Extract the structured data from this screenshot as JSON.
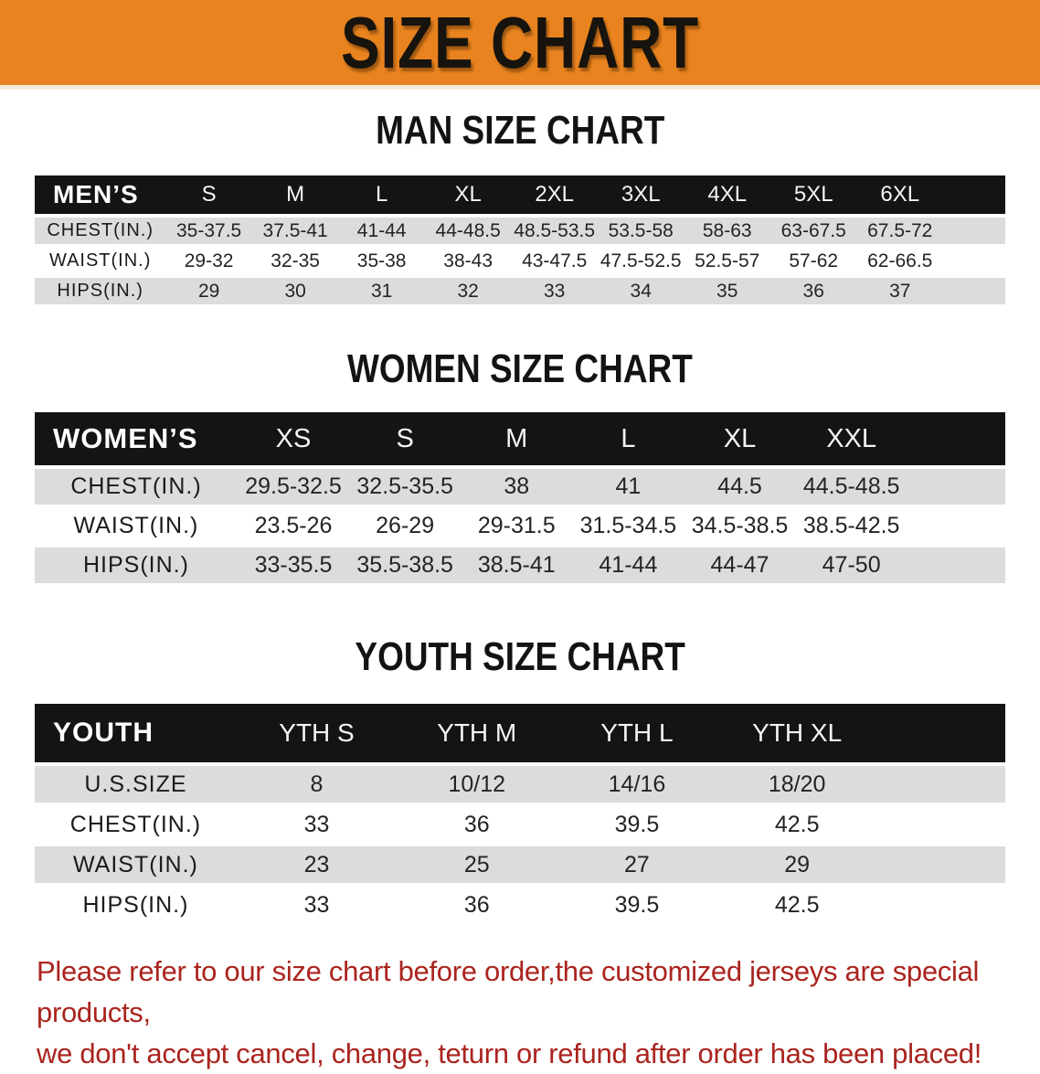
{
  "banner": {
    "title": "SIZE CHART",
    "bg_color": "#E8831F",
    "text_color": "#17130e"
  },
  "colors": {
    "header_bar": "#141414",
    "row_gray": "#dcdcdc",
    "row_white": "#ffffff",
    "footnote_red": "#AA241E"
  },
  "men": {
    "heading": "MAN SIZE CHART",
    "corner": "MEN’S",
    "sizes": [
      "S",
      "M",
      "L",
      "XL",
      "2XL",
      "3XL",
      "4XL",
      "5XL",
      "6XL"
    ],
    "rows": [
      {
        "label": "CHEST(IN.)",
        "values": [
          "35-37.5",
          "37.5-41",
          "41-44",
          "44-48.5",
          "48.5-53.5",
          "53.5-58",
          "58-63",
          "63-67.5",
          "67.5-72"
        ]
      },
      {
        "label": "WAIST(IN.)",
        "values": [
          "29-32",
          "32-35",
          "35-38",
          "38-43",
          "43-47.5",
          "47.5-52.5",
          "52.5-57",
          "57-62",
          "62-66.5"
        ]
      },
      {
        "label": "HIPS(IN.)",
        "values": [
          "29",
          "30",
          "31",
          "32",
          "33",
          "34",
          "35",
          "36",
          "37"
        ]
      }
    ]
  },
  "women": {
    "heading": "WOMEN SIZE CHART",
    "corner": "WOMEN’S",
    "sizes": [
      "XS",
      "S",
      "M",
      "L",
      "XL",
      "XXL"
    ],
    "rows": [
      {
        "label": "CHEST(IN.)",
        "values": [
          "29.5-32.5",
          "32.5-35.5",
          "38",
          "41",
          "44.5",
          "44.5-48.5"
        ]
      },
      {
        "label": "WAIST(IN.)",
        "values": [
          "23.5-26",
          "26-29",
          "29-31.5",
          "31.5-34.5",
          "34.5-38.5",
          "38.5-42.5"
        ]
      },
      {
        "label": "HIPS(IN.)",
        "values": [
          "33-35.5",
          "35.5-38.5",
          "38.5-41",
          "41-44",
          "44-47",
          "47-50"
        ]
      }
    ]
  },
  "youth": {
    "heading": "YOUTH SIZE CHART",
    "corner": "YOUTH",
    "sizes": [
      "YTH S",
      "YTH M",
      "YTH L",
      "YTH XL"
    ],
    "rows": [
      {
        "label": "U.S.SIZE",
        "values": [
          "8",
          "10/12",
          "14/16",
          "18/20"
        ]
      },
      {
        "label": "CHEST(IN.)",
        "values": [
          "33",
          "36",
          "39.5",
          "42.5"
        ]
      },
      {
        "label": "WAIST(IN.)",
        "values": [
          "23",
          "25",
          "27",
          "29"
        ]
      },
      {
        "label": "HIPS(IN.)",
        "values": [
          "33",
          "36",
          "39.5",
          "42.5"
        ]
      }
    ]
  },
  "footnote": {
    "line1": "Please refer to our size chart before order,the customized jerseys are special products,",
    "line2": "we don't accept cancel, change, teturn or refund after order has been placed!"
  }
}
